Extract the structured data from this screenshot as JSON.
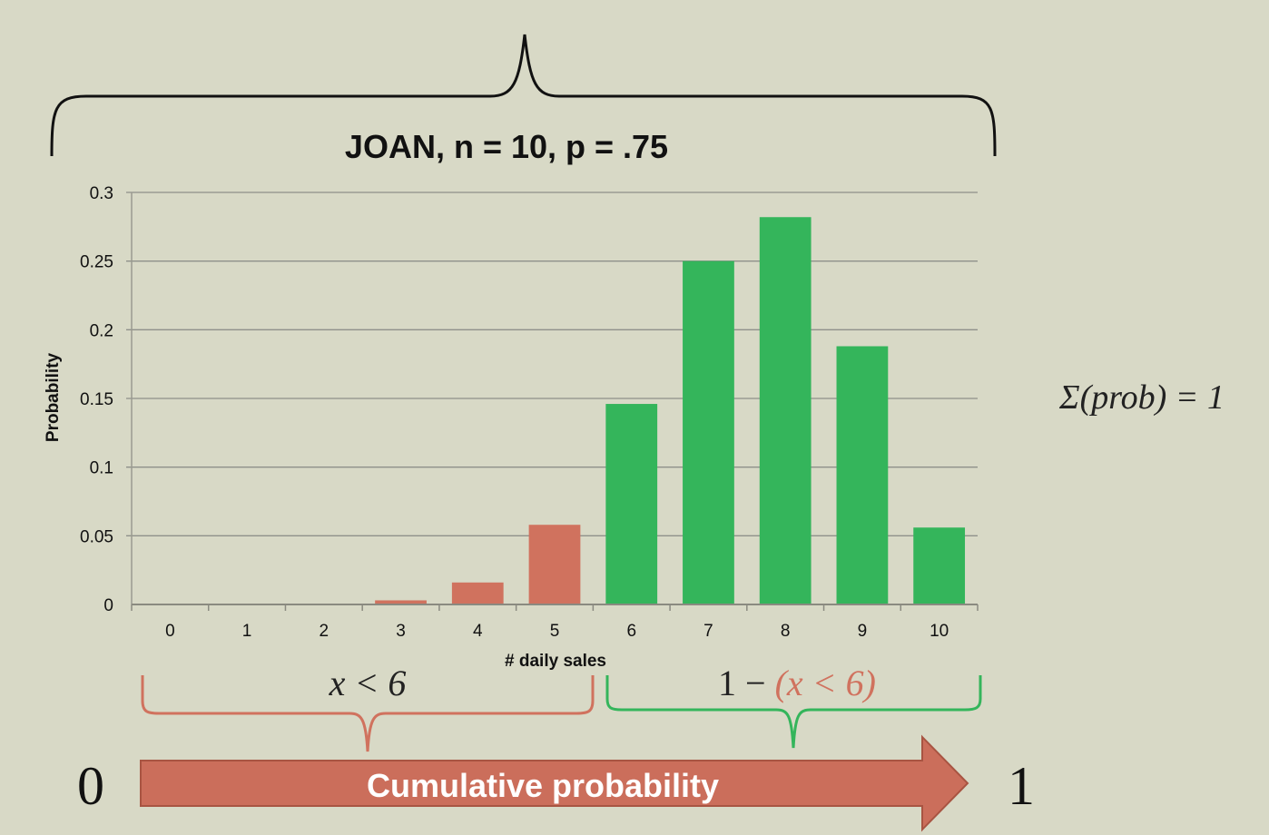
{
  "chart_data": {
    "type": "bar",
    "title": "JOAN, n = 10, p = .75",
    "xlabel": "# daily sales",
    "ylabel": "Probability",
    "categories": [
      "0",
      "1",
      "2",
      "3",
      "4",
      "5",
      "6",
      "7",
      "8",
      "9",
      "10"
    ],
    "values": [
      0.0,
      0.0,
      0.0,
      0.003,
      0.016,
      0.058,
      0.146,
      0.25,
      0.282,
      0.188,
      0.056
    ],
    "ylim": [
      0,
      0.3
    ],
    "yticks": [
      "0",
      "0.05",
      "0.1",
      "0.15",
      "0.2",
      "0.25",
      "0.3"
    ],
    "ytick_values": [
      0,
      0.05,
      0.1,
      0.15,
      0.2,
      0.25,
      0.3
    ],
    "grid": true,
    "colors": {
      "below_6": "#d0725e",
      "from_6": "#34b55b"
    }
  },
  "annotations": {
    "sum_label": "Σ(prob) = 1",
    "left_brace_math": "x < 6",
    "right_brace_prefix": "1 − ",
    "right_brace_paren": "(x < 6)",
    "arrow_label": "Cumulative probability",
    "arrow_start": "0",
    "arrow_end": "1"
  },
  "colors": {
    "background": "#d8d9c6",
    "red": "#d0725e",
    "green": "#34b55b",
    "arrow": "#cb6e5b",
    "arrow_stroke": "#a85442",
    "text": "#111111"
  }
}
